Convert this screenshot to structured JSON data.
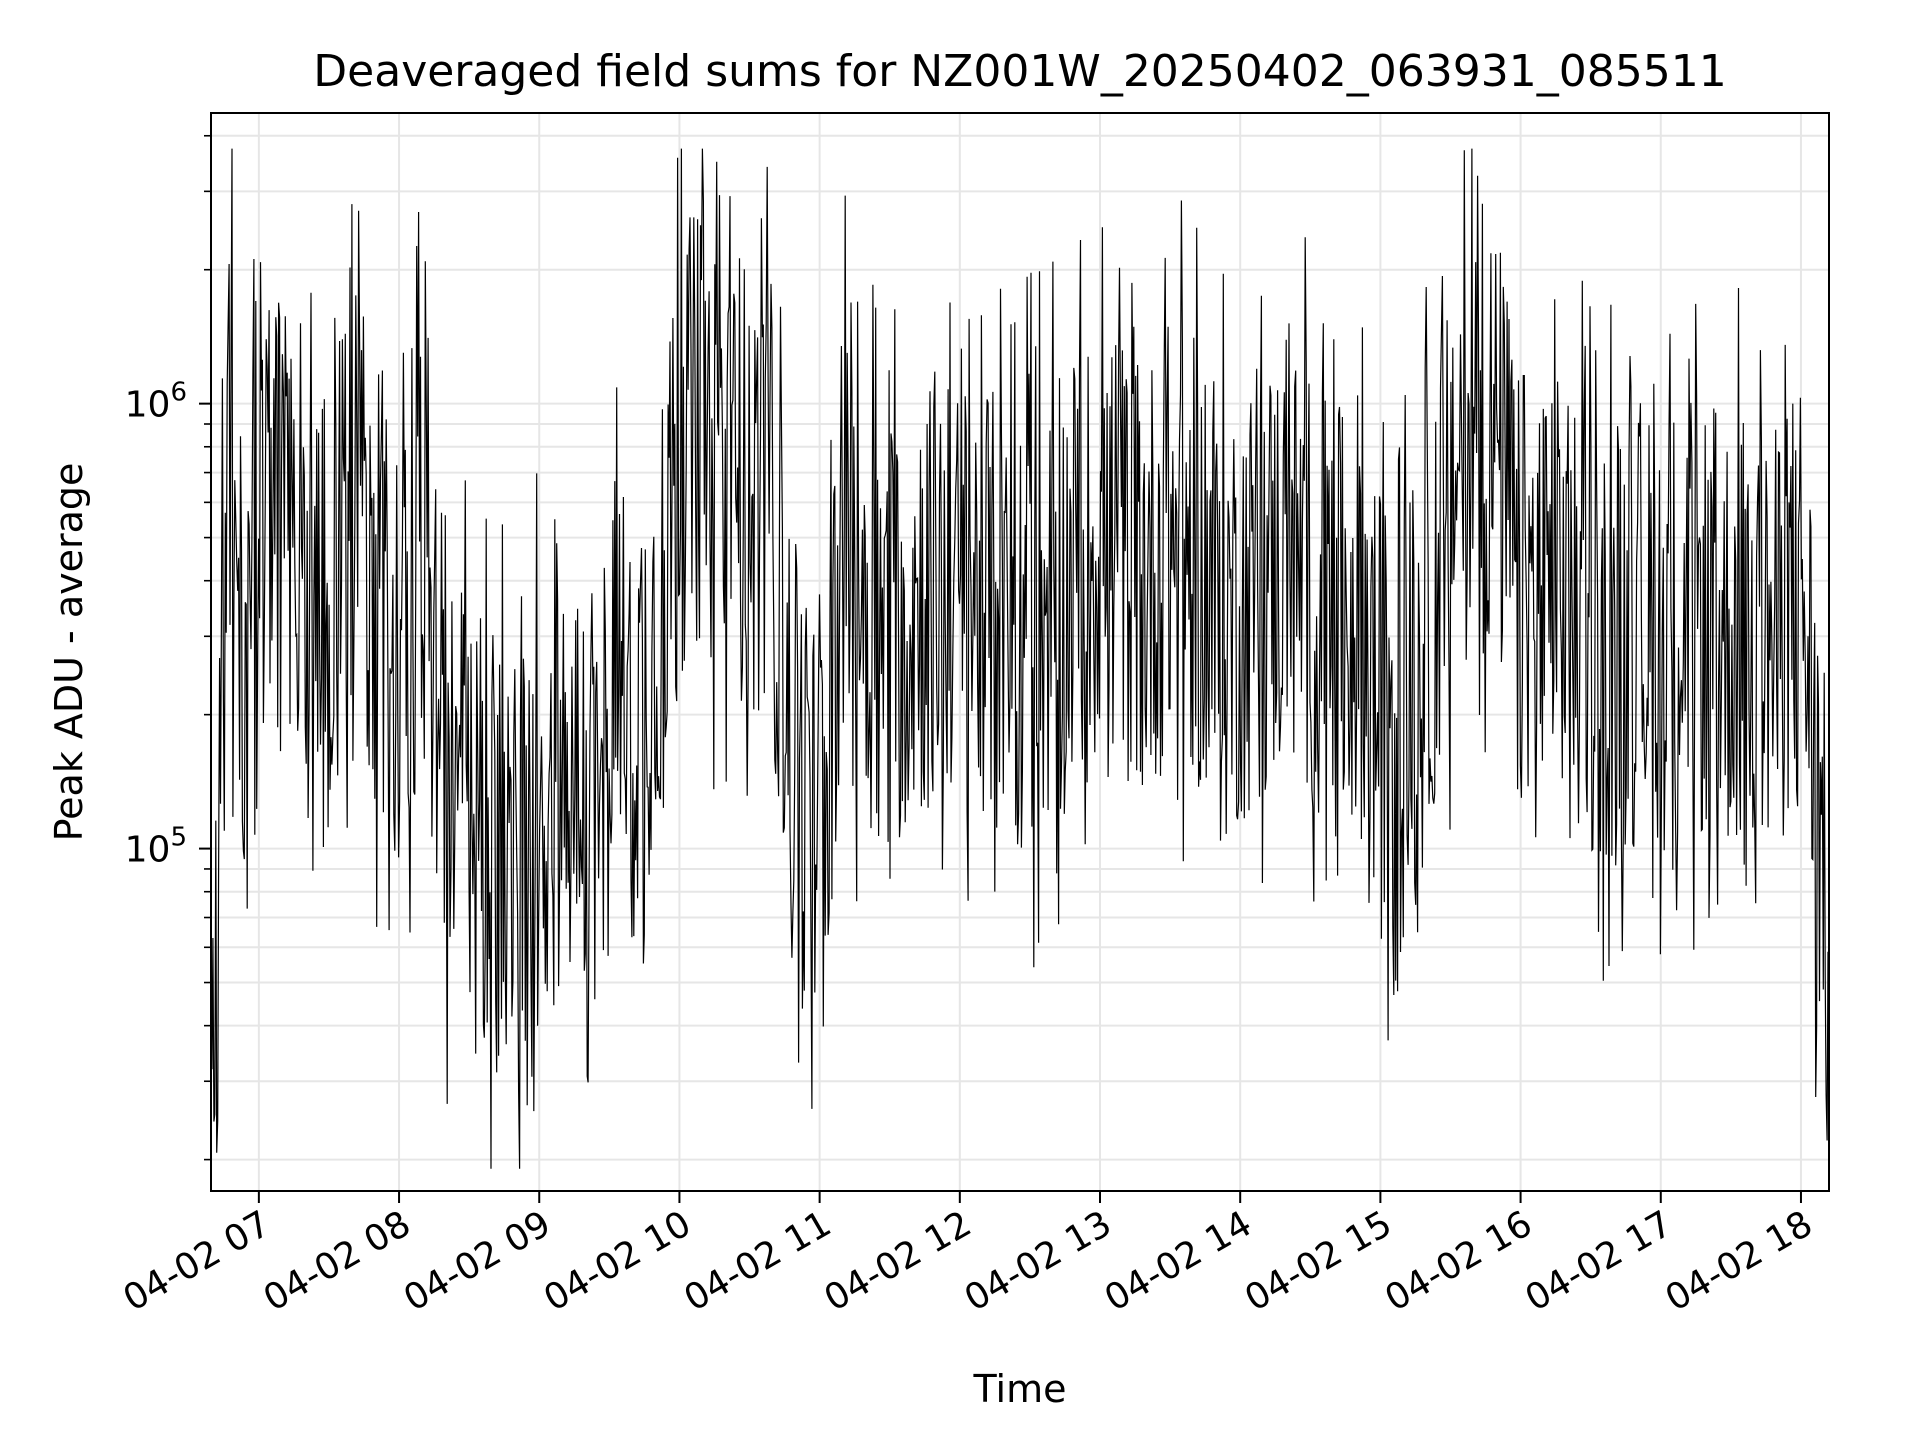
{
  "chart_data": {
    "type": "line",
    "title": "Deaveraged field sums for NZ001W_20250402_063931_085511",
    "xlabel": "Time",
    "ylabel": "Peak ADU - average",
    "yscale": "log",
    "ylim": [
      17000,
      4500000
    ],
    "xlim": [
      "2025-04-02 06:39:31",
      "2025-04-02 18:12:00"
    ],
    "grid": true,
    "legend": "none",
    "line_color": "#000000",
    "grid_color": "#e6e6e6",
    "x_ticks": [
      {
        "t": "2025-04-02 07:00",
        "label": "04-02 07"
      },
      {
        "t": "2025-04-02 08:00",
        "label": "04-02 08"
      },
      {
        "t": "2025-04-02 09:00",
        "label": "04-02 09"
      },
      {
        "t": "2025-04-02 10:00",
        "label": "04-02 10"
      },
      {
        "t": "2025-04-02 11:00",
        "label": "04-02 11"
      },
      {
        "t": "2025-04-02 12:00",
        "label": "04-02 12"
      },
      {
        "t": "2025-04-02 13:00",
        "label": "04-02 13"
      },
      {
        "t": "2025-04-02 14:00",
        "label": "04-02 14"
      },
      {
        "t": "2025-04-02 15:00",
        "label": "04-02 15"
      },
      {
        "t": "2025-04-02 16:00",
        "label": "04-02 16"
      },
      {
        "t": "2025-04-02 17:00",
        "label": "04-02 17"
      },
      {
        "t": "2025-04-02 18:00",
        "label": "04-02 18"
      }
    ],
    "y_ticks": [
      {
        "value": 100000,
        "base": "10",
        "exp": "5"
      },
      {
        "value": 1000000,
        "base": "10",
        "exp": "6"
      }
    ],
    "series": [
      {
        "x": [
          "2025-04-02 06:39:31",
          "2025-04-02 06:42:00",
          "2025-04-02 06:45:00",
          "2025-04-02 06:48:00",
          "2025-04-02 06:50:00",
          "2025-04-02 06:55:00",
          "2025-04-02 07:00:00",
          "2025-04-02 07:10:00",
          "2025-04-02 07:20:00",
          "2025-04-02 07:30:00",
          "2025-04-02 07:40:00",
          "2025-04-02 07:50:00",
          "2025-04-02 08:00:00",
          "2025-04-02 08:10:00",
          "2025-04-02 08:20:00",
          "2025-04-02 08:30:00",
          "2025-04-02 08:40:00",
          "2025-04-02 08:50:00",
          "2025-04-02 09:00:00",
          "2025-04-02 09:10:00",
          "2025-04-02 09:20:00",
          "2025-04-02 09:30:00",
          "2025-04-02 09:40:00",
          "2025-04-02 09:50:00",
          "2025-04-02 10:00:00",
          "2025-04-02 10:10:00",
          "2025-04-02 10:20:00",
          "2025-04-02 10:30:00",
          "2025-04-02 10:40:00",
          "2025-04-02 10:50:00",
          "2025-04-02 11:00:00",
          "2025-04-02 11:10:00",
          "2025-04-02 11:20:00",
          "2025-04-02 11:30:00",
          "2025-04-02 11:40:00",
          "2025-04-02 11:50:00",
          "2025-04-02 12:00:00",
          "2025-04-02 12:10:00",
          "2025-04-02 12:20:00",
          "2025-04-02 12:30:00",
          "2025-04-02 12:40:00",
          "2025-04-02 12:50:00",
          "2025-04-02 13:00:00",
          "2025-04-02 13:10:00",
          "2025-04-02 13:20:00",
          "2025-04-02 13:30:00",
          "2025-04-02 13:40:00",
          "2025-04-02 13:50:00",
          "2025-04-02 14:00:00",
          "2025-04-02 14:10:00",
          "2025-04-02 14:20:00",
          "2025-04-02 14:30:00",
          "2025-04-02 14:40:00",
          "2025-04-02 14:50:00",
          "2025-04-02 15:00:00",
          "2025-04-02 15:10:00",
          "2025-04-02 15:20:00",
          "2025-04-02 15:30:00",
          "2025-04-02 15:40:00",
          "2025-04-02 15:50:00",
          "2025-04-02 16:00:00",
          "2025-04-02 16:10:00",
          "2025-04-02 16:20:00",
          "2025-04-02 16:30:00",
          "2025-04-02 16:40:00",
          "2025-04-02 16:50:00",
          "2025-04-02 17:00:00",
          "2025-04-02 17:10:00",
          "2025-04-02 17:20:00",
          "2025-04-02 17:30:00",
          "2025-04-02 17:40:00",
          "2025-04-02 17:50:00",
          "2025-04-02 18:00:00",
          "2025-04-02 18:05:00",
          "2025-04-02 18:10:00",
          "2025-04-02 18:12:00"
        ],
        "y": [
          25000,
          30000,
          380000,
          1200000,
          250000,
          300000,
          400000,
          600000,
          450000,
          350000,
          700000,
          400000,
          250000,
          500000,
          150000,
          120000,
          100000,
          90000,
          120000,
          150000,
          130000,
          180000,
          200000,
          300000,
          800000,
          900000,
          600000,
          700000,
          500000,
          150000,
          100000,
          500000,
          350000,
          300000,
          350000,
          400000,
          350000,
          380000,
          300000,
          320000,
          350000,
          400000,
          500000,
          450000,
          400000,
          500000,
          450000,
          300000,
          350000,
          400000,
          450000,
          400000,
          300000,
          350000,
          200000,
          180000,
          300000,
          700000,
          900000,
          800000,
          400000,
          350000,
          380000,
          300000,
          280000,
          320000,
          300000,
          350000,
          320000,
          300000,
          300000,
          280000,
          400000,
          200000,
          80000,
          40000
        ]
      }
    ]
  }
}
